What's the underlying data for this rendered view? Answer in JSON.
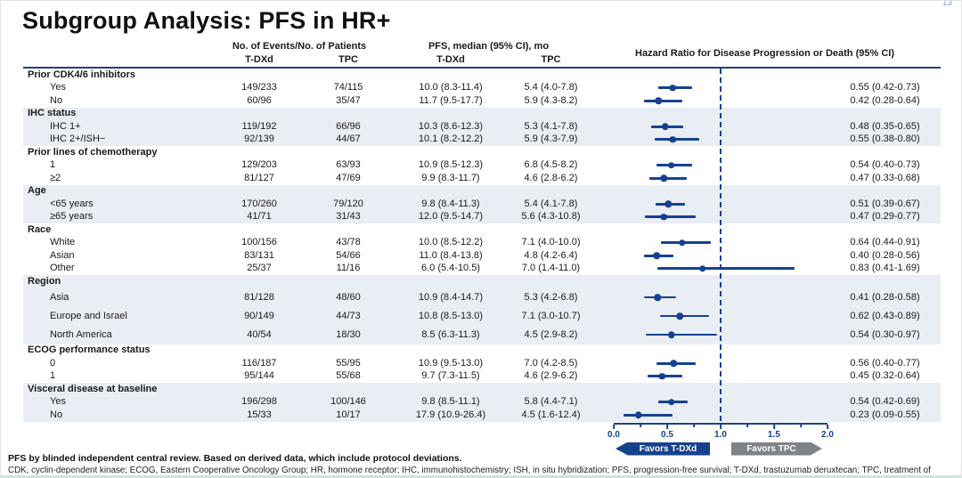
{
  "slide": {
    "title": "Subgroup Analysis: PFS in HR+",
    "page_number": "13"
  },
  "table": {
    "headers": {
      "events_group": "No. of Events/No. of Patients",
      "pfs_group": "PFS, median (95% CI), mo",
      "hr_group": "Hazard Ratio for Disease Progression or Death  (95% CI)",
      "events_tdxd": "T-DXd",
      "events_tpc": "TPC",
      "pfs_tdxd": "T-DXd",
      "pfs_tpc": "TPC"
    },
    "sections": [
      {
        "label": "Prior CDK4/6 inhibitors",
        "shaded": false,
        "tall": false,
        "rows": [
          {
            "label": "Yes",
            "events_tdxd": "149/233",
            "events_tpc": "74/115",
            "pfs_tdxd": "10.0 (8.3-11.4)",
            "pfs_tpc": "5.4 (4.0-7.8)",
            "hr": 0.55,
            "ci": [
              0.42,
              0.73
            ],
            "hr_text": "0.55 (0.42-0.73)"
          },
          {
            "label": "No",
            "events_tdxd": "60/96",
            "events_tpc": "35/47",
            "pfs_tdxd": "11.7 (9.5-17.7)",
            "pfs_tpc": "5.9 (4.3-8.2)",
            "hr": 0.42,
            "ci": [
              0.28,
              0.64
            ],
            "hr_text": "0.42 (0.28-0.64)"
          }
        ]
      },
      {
        "label": "IHC status",
        "shaded": true,
        "tall": false,
        "rows": [
          {
            "label": "IHC 1+",
            "events_tdxd": "119/192",
            "events_tpc": "66/96",
            "pfs_tdxd": "10.3 (8.6-12.3)",
            "pfs_tpc": "5.3 (4.1-7.8)",
            "hr": 0.48,
            "ci": [
              0.35,
              0.65
            ],
            "hr_text": "0.48 (0.35-0.65)"
          },
          {
            "label": "IHC 2+/ISH−",
            "events_tdxd": "92/139",
            "events_tpc": "44/67",
            "pfs_tdxd": "10.1 (8.2-12.2)",
            "pfs_tpc": "5.9 (4.3-7.9)",
            "hr": 0.55,
            "ci": [
              0.38,
              0.8
            ],
            "hr_text": "0.55 (0.38-0.80)"
          }
        ]
      },
      {
        "label": "Prior lines of chemotherapy",
        "shaded": false,
        "tall": false,
        "rows": [
          {
            "label": "1",
            "events_tdxd": "129/203",
            "events_tpc": "63/93",
            "pfs_tdxd": "10.9 (8.5-12.3)",
            "pfs_tpc": "6.8 (4.5-8.2)",
            "hr": 0.54,
            "ci": [
              0.4,
              0.73
            ],
            "hr_text": "0.54 (0.40-0.73)"
          },
          {
            "label": "≥2",
            "events_tdxd": "81/127",
            "events_tpc": "47/69",
            "pfs_tdxd": "9.9 (8.3-11.7)",
            "pfs_tpc": "4.6 (2.8-6.2)",
            "hr": 0.47,
            "ci": [
              0.33,
              0.68
            ],
            "hr_text": "0.47 (0.33-0.68)"
          }
        ]
      },
      {
        "label": "Age",
        "shaded": true,
        "tall": false,
        "rows": [
          {
            "label": "<65 years",
            "events_tdxd": "170/260",
            "events_tpc": "79/120",
            "pfs_tdxd": "9.8 (8.4-11.3)",
            "pfs_tpc": "5.4 (4.1-7.8)",
            "hr": 0.51,
            "ci": [
              0.39,
              0.67
            ],
            "hr_text": "0.51 (0.39-0.67)"
          },
          {
            "label": "≥65 years",
            "events_tdxd": "41/71",
            "events_tpc": "31/43",
            "pfs_tdxd": "12.0 (9.5-14.7)",
            "pfs_tpc": "5.6 (4.3-10.8)",
            "hr": 0.47,
            "ci": [
              0.29,
              0.77
            ],
            "hr_text": "0.47 (0.29-0.77)"
          }
        ]
      },
      {
        "label": "Race",
        "shaded": false,
        "tall": false,
        "rows": [
          {
            "label": "White",
            "events_tdxd": "100/156",
            "events_tpc": "43/78",
            "pfs_tdxd": "10.0 (8.5-12.2)",
            "pfs_tpc": "7.1 (4.0-10.0)",
            "hr": 0.64,
            "ci": [
              0.44,
              0.91
            ],
            "hr_text": "0.64 (0.44-0.91)"
          },
          {
            "label": "Asian",
            "events_tdxd": "83/131",
            "events_tpc": "54/66",
            "pfs_tdxd": "11.0 (8.4-13.8)",
            "pfs_tpc": "4.8 (4.2-6.4)",
            "hr": 0.4,
            "ci": [
              0.28,
              0.56
            ],
            "hr_text": "0.40 (0.28-0.56)"
          },
          {
            "label": "Other",
            "events_tdxd": "25/37",
            "events_tpc": "11/16",
            "pfs_tdxd": "6.0 (5.4-10.5)",
            "pfs_tpc": "7.0 (1.4-11.0)",
            "hr": 0.83,
            "ci": [
              0.41,
              1.69
            ],
            "hr_text": "0.83 (0.41-1.69)"
          }
        ]
      },
      {
        "label": "Region",
        "shaded": true,
        "tall": true,
        "rows": [
          {
            "label": "Asia",
            "events_tdxd": "81/128",
            "events_tpc": "48/60",
            "pfs_tdxd": "10.9 (8.4-14.7)",
            "pfs_tpc": "5.3 (4.2-6.8)",
            "hr": 0.41,
            "ci": [
              0.28,
              0.58
            ],
            "hr_text": "0.41 (0.28-0.58)"
          },
          {
            "label": "Europe and Israel",
            "events_tdxd": "90/149",
            "events_tpc": "44/73",
            "pfs_tdxd": "10.8 (8.5-13.0)",
            "pfs_tpc": "7.1 (3.0-10.7)",
            "hr": 0.62,
            "ci": [
              0.43,
              0.89
            ],
            "hr_text": "0.62 (0.43-0.89)"
          },
          {
            "label": "North America",
            "events_tdxd": "40/54",
            "events_tpc": "18/30",
            "pfs_tdxd": "8.5 (6.3-11.3)",
            "pfs_tpc": "4.5 (2.9-8.2)",
            "hr": 0.54,
            "ci": [
              0.3,
              0.97
            ],
            "hr_text": "0.54 (0.30-0.97)"
          }
        ]
      },
      {
        "label": "ECOG performance status",
        "shaded": false,
        "tall": false,
        "rows": [
          {
            "label": "0",
            "events_tdxd": "116/187",
            "events_tpc": "55/95",
            "pfs_tdxd": "10.9 (9.5-13.0)",
            "pfs_tpc": "7.0 (4.2-8.5)",
            "hr": 0.56,
            "ci": [
              0.4,
              0.77
            ],
            "hr_text": "0.56 (0.40-0.77)"
          },
          {
            "label": "1",
            "events_tdxd": "95/144",
            "events_tpc": "55/68",
            "pfs_tdxd": "9.7 (7.3-11.5)",
            "pfs_tpc": "4.6 (2.9-6.2)",
            "hr": 0.45,
            "ci": [
              0.32,
              0.64
            ],
            "hr_text": "0.45 (0.32-0.64)"
          }
        ]
      },
      {
        "label": "Visceral disease at baseline",
        "shaded": true,
        "tall": false,
        "rows": [
          {
            "label": "Yes",
            "events_tdxd": "196/298",
            "events_tpc": "100/146",
            "pfs_tdxd": "9.8 (8.5-11.1)",
            "pfs_tpc": "5.8 (4.4-7.1)",
            "hr": 0.54,
            "ci": [
              0.42,
              0.69
            ],
            "hr_text": "0.54 (0.42-0.69)"
          },
          {
            "label": "No",
            "events_tdxd": "15/33",
            "events_tpc": "10/17",
            "pfs_tdxd": "17.9 (10.9-26.4)",
            "pfs_tpc": "4.5 (1.6-12.4)",
            "hr": 0.23,
            "ci": [
              0.09,
              0.55
            ],
            "hr_text": "0.23 (0.09-0.55)"
          }
        ]
      }
    ]
  },
  "axis": {
    "ticks": [
      "0.0",
      "0.5",
      "1.0",
      "1.5",
      "2.0"
    ],
    "minor_ticks": [
      0.25,
      0.75,
      1.25,
      1.75
    ],
    "favors_left": "Favors T-DXd",
    "favors_right": "Favors TPC"
  },
  "footnotes": {
    "line1": "PFS by blinded independent central review. Based on derived data, which include protocol deviations.",
    "line2": "CDK, cyclin-dependent kinase; ECOG, Eastern Cooperative Oncology Group; HR, hormone receptor; IHC, immunohistochemistry; ISH, in situ hybridization; PFS, progression-free survival; T-DXd, trastuzumab deruxtecan; TPC, treatment of physician's choice."
  },
  "colors": {
    "accent_navy": "#16418f",
    "section_shade": "#e9edf4",
    "favors_tpc_gray": "#7f8286",
    "header_rule": "#20407c",
    "bottom_rule_teal": "#c9e6e0"
  },
  "chart_data": {
    "type": "scatter",
    "subtype": "forest_plot",
    "title": "Hazard Ratio for Disease Progression or Death (95% CI)",
    "xlabel": "Hazard Ratio",
    "xlim": [
      0,
      2
    ],
    "x_ticks": [
      0.0,
      0.5,
      1.0,
      1.5,
      2.0
    ],
    "reference_line": 1.0,
    "legend": {
      "left_of_reference": "Favors T-DXd",
      "right_of_reference": "Favors TPC"
    },
    "points": [
      {
        "group": "Prior CDK4/6 inhibitors",
        "subgroup": "Yes",
        "hr": 0.55,
        "ci": [
          0.42,
          0.73
        ]
      },
      {
        "group": "Prior CDK4/6 inhibitors",
        "subgroup": "No",
        "hr": 0.42,
        "ci": [
          0.28,
          0.64
        ]
      },
      {
        "group": "IHC status",
        "subgroup": "IHC 1+",
        "hr": 0.48,
        "ci": [
          0.35,
          0.65
        ]
      },
      {
        "group": "IHC status",
        "subgroup": "IHC 2+/ISH−",
        "hr": 0.55,
        "ci": [
          0.38,
          0.8
        ]
      },
      {
        "group": "Prior lines of chemotherapy",
        "subgroup": "1",
        "hr": 0.54,
        "ci": [
          0.4,
          0.73
        ]
      },
      {
        "group": "Prior lines of chemotherapy",
        "subgroup": "≥2",
        "hr": 0.47,
        "ci": [
          0.33,
          0.68
        ]
      },
      {
        "group": "Age",
        "subgroup": "<65 years",
        "hr": 0.51,
        "ci": [
          0.39,
          0.67
        ]
      },
      {
        "group": "Age",
        "subgroup": "≥65 years",
        "hr": 0.47,
        "ci": [
          0.29,
          0.77
        ]
      },
      {
        "group": "Race",
        "subgroup": "White",
        "hr": 0.64,
        "ci": [
          0.44,
          0.91
        ]
      },
      {
        "group": "Race",
        "subgroup": "Asian",
        "hr": 0.4,
        "ci": [
          0.28,
          0.56
        ]
      },
      {
        "group": "Race",
        "subgroup": "Other",
        "hr": 0.83,
        "ci": [
          0.41,
          1.69
        ]
      },
      {
        "group": "Region",
        "subgroup": "Asia",
        "hr": 0.41,
        "ci": [
          0.28,
          0.58
        ]
      },
      {
        "group": "Region",
        "subgroup": "Europe and Israel",
        "hr": 0.62,
        "ci": [
          0.43,
          0.89
        ]
      },
      {
        "group": "Region",
        "subgroup": "North America",
        "hr": 0.54,
        "ci": [
          0.3,
          0.97
        ]
      },
      {
        "group": "ECOG performance status",
        "subgroup": "0",
        "hr": 0.56,
        "ci": [
          0.4,
          0.77
        ]
      },
      {
        "group": "ECOG performance status",
        "subgroup": "1",
        "hr": 0.45,
        "ci": [
          0.32,
          0.64
        ]
      },
      {
        "group": "Visceral disease at baseline",
        "subgroup": "Yes",
        "hr": 0.54,
        "ci": [
          0.42,
          0.69
        ]
      },
      {
        "group": "Visceral disease at baseline",
        "subgroup": "No",
        "hr": 0.23,
        "ci": [
          0.09,
          0.55
        ]
      }
    ]
  }
}
